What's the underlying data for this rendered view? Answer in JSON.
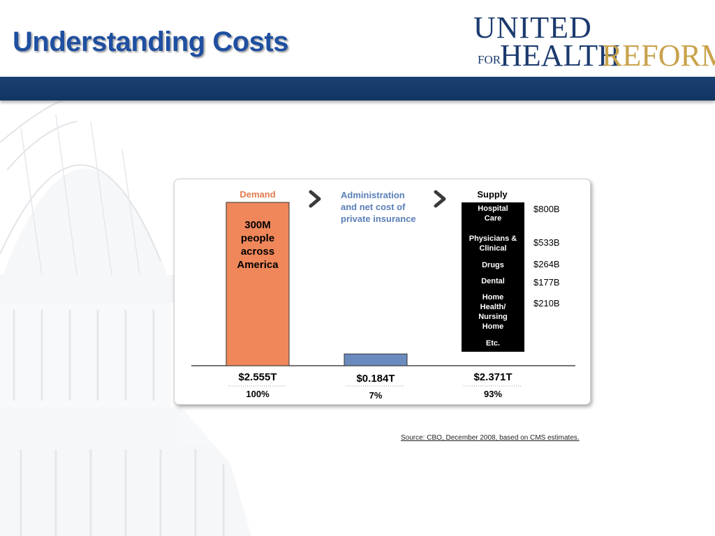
{
  "slide": {
    "title": "Understanding Costs",
    "source": "Source: CBO, December 2008, based on CMS estimates."
  },
  "logo": {
    "line1": "UNITED",
    "for": "FOR",
    "health": "HEALTH",
    "reform": "REFORM"
  },
  "colors": {
    "title": "#1f4fa0",
    "band": "#1a4173",
    "demand": "#f0875a",
    "admin": "#6b8bbf",
    "supply": "#000000",
    "logo_gold": "#c9a24a"
  },
  "chart_data": {
    "type": "bar",
    "grid": false,
    "column_headers": [
      "Demand",
      "Administration\nand net cost of\nprivate insurance",
      "Supply"
    ],
    "demand_label": "300M\npeople\nacross\nAmerica",
    "categories": [
      "Demand",
      "Administration and net cost of private insurance",
      "Supply"
    ],
    "values": [
      2.555,
      0.184,
      2.371
    ],
    "totals": [
      "$2.555T",
      "$0.184T",
      "$2.371T"
    ],
    "percents": [
      "100%",
      "7%",
      "93%"
    ],
    "supply_breakdown": [
      {
        "label": "Hospital\nCare",
        "value": "$800B"
      },
      {
        "label": "Physicians &\nClinical",
        "value": "$533B"
      },
      {
        "label": "Drugs",
        "value": "$264B"
      },
      {
        "label": "Dental",
        "value": "$177B"
      },
      {
        "label": "Home\nHealth/\nNursing\nHome",
        "value": "$210B"
      },
      {
        "label": "Etc.",
        "value": ""
      }
    ]
  }
}
